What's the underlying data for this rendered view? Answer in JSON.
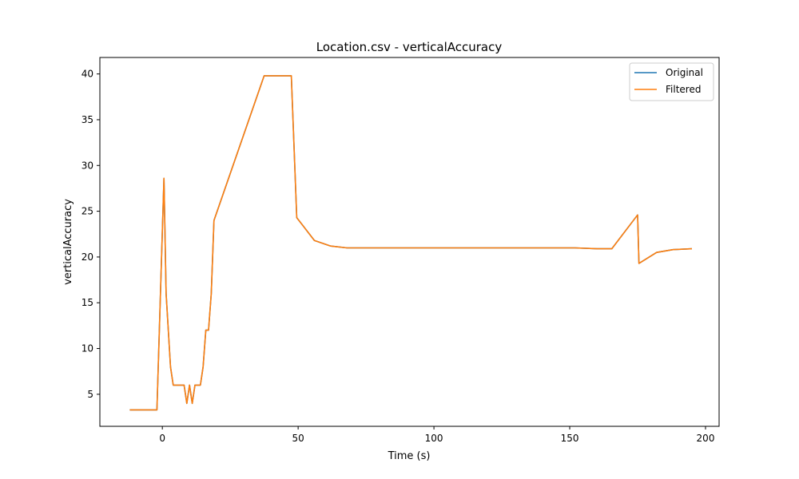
{
  "chart_data": {
    "type": "line",
    "title": "Location.csv - verticalAccuracy",
    "xlabel": "Time (s)",
    "ylabel": "verticalAccuracy",
    "xlim": [
      -23,
      205
    ],
    "ylim": [
      1.5,
      41.8
    ],
    "xticks": [
      0,
      50,
      100,
      150,
      200
    ],
    "yticks": [
      5,
      10,
      15,
      20,
      25,
      30,
      35,
      40
    ],
    "grid": false,
    "legend_position": "top-right",
    "series": [
      {
        "name": "Original",
        "color": "#1f77b4",
        "x": [
          -12,
          -2,
          0.6,
          1.4,
          3,
          4,
          8,
          9,
          10,
          11,
          12,
          14,
          15,
          16,
          17,
          18,
          19,
          37.5,
          47.5,
          49.5,
          56,
          62,
          68,
          100,
          152,
          160,
          165.5,
          175,
          175.5,
          182,
          188,
          195
        ],
        "y": [
          3.3,
          3.3,
          28.6,
          16,
          8,
          6,
          6,
          4,
          6,
          4,
          6,
          6,
          8,
          12,
          12,
          16,
          24,
          39.8,
          39.8,
          24.3,
          21.8,
          21.2,
          21.0,
          21.0,
          21.0,
          20.9,
          20.9,
          24.6,
          19.3,
          20.5,
          20.8,
          20.9
        ]
      },
      {
        "name": "Filtered",
        "color": "#ff7f0e",
        "x": [
          -12,
          -2,
          0.6,
          1.4,
          3,
          4,
          8,
          9,
          10,
          11,
          12,
          14,
          15,
          16,
          17,
          18,
          19,
          37.5,
          47.5,
          49.5,
          56,
          62,
          68,
          100,
          152,
          160,
          165.5,
          175,
          175.5,
          182,
          188,
          195
        ],
        "y": [
          3.3,
          3.3,
          28.6,
          16,
          8,
          6,
          6,
          4,
          6,
          4,
          6,
          6,
          8,
          12,
          12,
          16,
          24,
          39.8,
          39.8,
          24.3,
          21.8,
          21.2,
          21.0,
          21.0,
          21.0,
          20.9,
          20.9,
          24.6,
          19.3,
          20.5,
          20.8,
          20.9
        ]
      }
    ]
  }
}
